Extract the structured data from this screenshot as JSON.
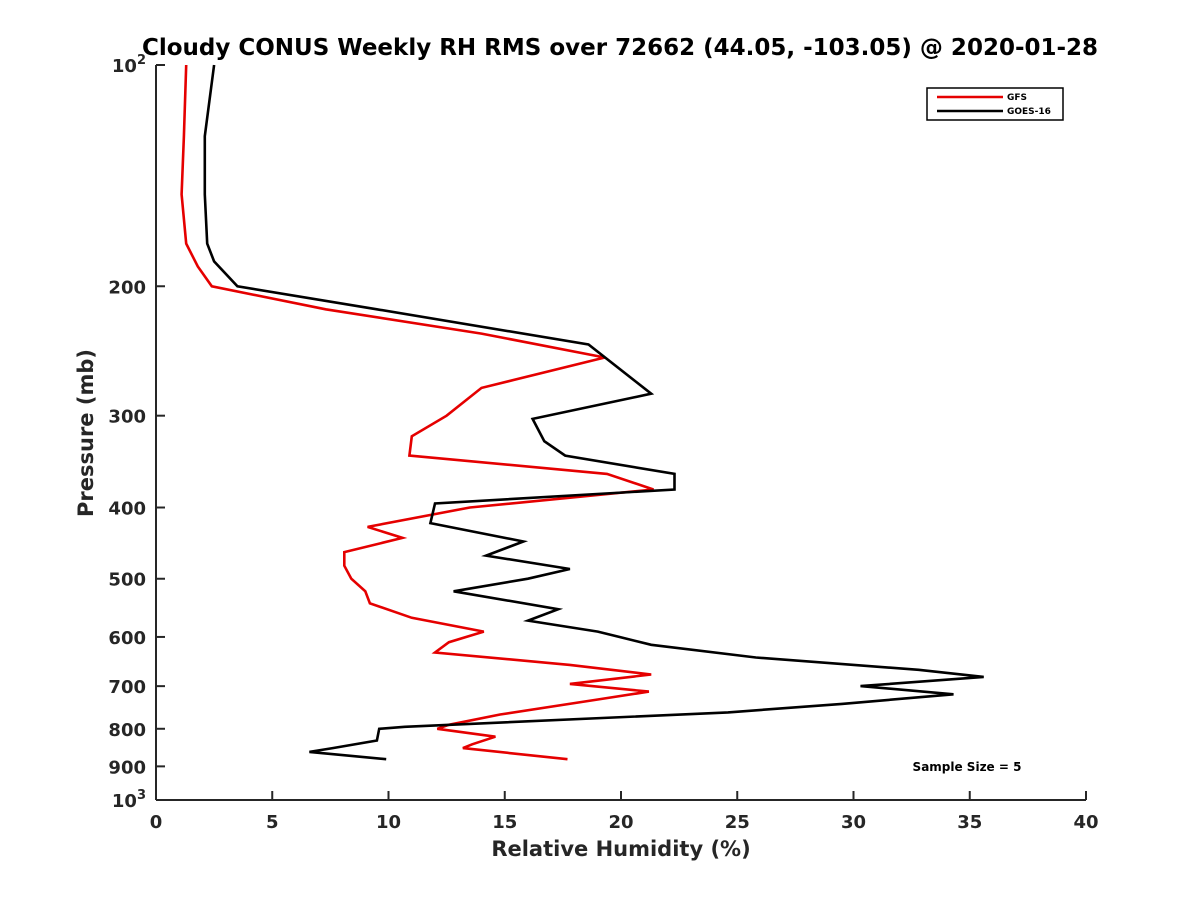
{
  "chart_data": {
    "type": "line",
    "title": "Cloudy CONUS Weekly RH RMS over 72662 (44.05, -103.05) @ 2020-01-28",
    "xlabel": "Relative Humidity (%)",
    "ylabel": "Pressure (mb)",
    "xlim": [
      0,
      40
    ],
    "ylim": [
      100,
      1000
    ],
    "y_scale": "log",
    "y_reversed": true,
    "grid": false,
    "legend_position": "top-right",
    "x_ticks": [
      "0",
      "5",
      "10",
      "15",
      "20",
      "25",
      "30",
      "35",
      "40"
    ],
    "y_ticks": [
      {
        "value": 100,
        "base": "10",
        "exp": "2"
      },
      {
        "value": 200,
        "label": "200"
      },
      {
        "value": 300,
        "label": "300"
      },
      {
        "value": 400,
        "label": "400"
      },
      {
        "value": 500,
        "label": "500"
      },
      {
        "value": 600,
        "label": "600"
      },
      {
        "value": 700,
        "label": "700"
      },
      {
        "value": 800,
        "label": "800"
      },
      {
        "value": 900,
        "label": "900"
      },
      {
        "value": 1000,
        "base": "10",
        "exp": "3"
      }
    ],
    "series": [
      {
        "name": "GFS",
        "color": "#e50000",
        "points": [
          [
            1.3,
            100
          ],
          [
            1.2,
            125
          ],
          [
            1.1,
            150
          ],
          [
            1.3,
            175
          ],
          [
            1.8,
            188
          ],
          [
            2.4,
            200
          ],
          [
            7.3,
            215
          ],
          [
            14.0,
            232
          ],
          [
            19.3,
            250
          ],
          [
            14.0,
            275
          ],
          [
            12.5,
            300
          ],
          [
            11.0,
            320
          ],
          [
            10.9,
            340
          ],
          [
            19.4,
            360
          ],
          [
            21.4,
            378
          ],
          [
            13.5,
            400
          ],
          [
            9.1,
            425
          ],
          [
            10.6,
            440
          ],
          [
            8.1,
            460
          ],
          [
            8.1,
            480
          ],
          [
            8.4,
            500
          ],
          [
            9.0,
            520
          ],
          [
            9.2,
            540
          ],
          [
            11.0,
            565
          ],
          [
            14.1,
            590
          ],
          [
            12.6,
            610
          ],
          [
            12.0,
            630
          ],
          [
            17.8,
            655
          ],
          [
            21.3,
            675
          ],
          [
            17.8,
            695
          ],
          [
            21.2,
            712
          ],
          [
            19.0,
            730
          ],
          [
            14.8,
            765
          ],
          [
            12.6,
            790
          ],
          [
            12.1,
            800
          ],
          [
            14.6,
            820
          ],
          [
            13.6,
            840
          ],
          [
            13.2,
            850
          ],
          [
            17.7,
            880
          ]
        ]
      },
      {
        "name": "GOES-16",
        "color": "#000000",
        "points": [
          [
            2.5,
            100
          ],
          [
            2.1,
            125
          ],
          [
            2.1,
            150
          ],
          [
            2.2,
            175
          ],
          [
            2.5,
            185
          ],
          [
            3.5,
            200
          ],
          [
            9.5,
            215
          ],
          [
            18.6,
            240
          ],
          [
            21.3,
            280
          ],
          [
            16.2,
            303
          ],
          [
            16.7,
            325
          ],
          [
            17.6,
            340
          ],
          [
            22.3,
            360
          ],
          [
            22.3,
            378
          ],
          [
            12.0,
            395
          ],
          [
            11.8,
            420
          ],
          [
            15.8,
            445
          ],
          [
            14.2,
            465
          ],
          [
            17.8,
            485
          ],
          [
            16.0,
            500
          ],
          [
            12.8,
            520
          ],
          [
            17.3,
            550
          ],
          [
            16.0,
            570
          ],
          [
            19.0,
            590
          ],
          [
            21.3,
            615
          ],
          [
            25.8,
            640
          ],
          [
            32.8,
            665
          ],
          [
            35.6,
            680
          ],
          [
            30.3,
            700
          ],
          [
            34.3,
            718
          ],
          [
            29.5,
            740
          ],
          [
            24.6,
            760
          ],
          [
            10.7,
            795
          ],
          [
            9.6,
            800
          ],
          [
            9.5,
            830
          ],
          [
            7.6,
            850
          ],
          [
            6.6,
            860
          ],
          [
            9.9,
            880
          ]
        ]
      }
    ],
    "annotations": [
      {
        "text": "Sample Size = 5",
        "x": 37,
        "y": 900
      }
    ]
  }
}
